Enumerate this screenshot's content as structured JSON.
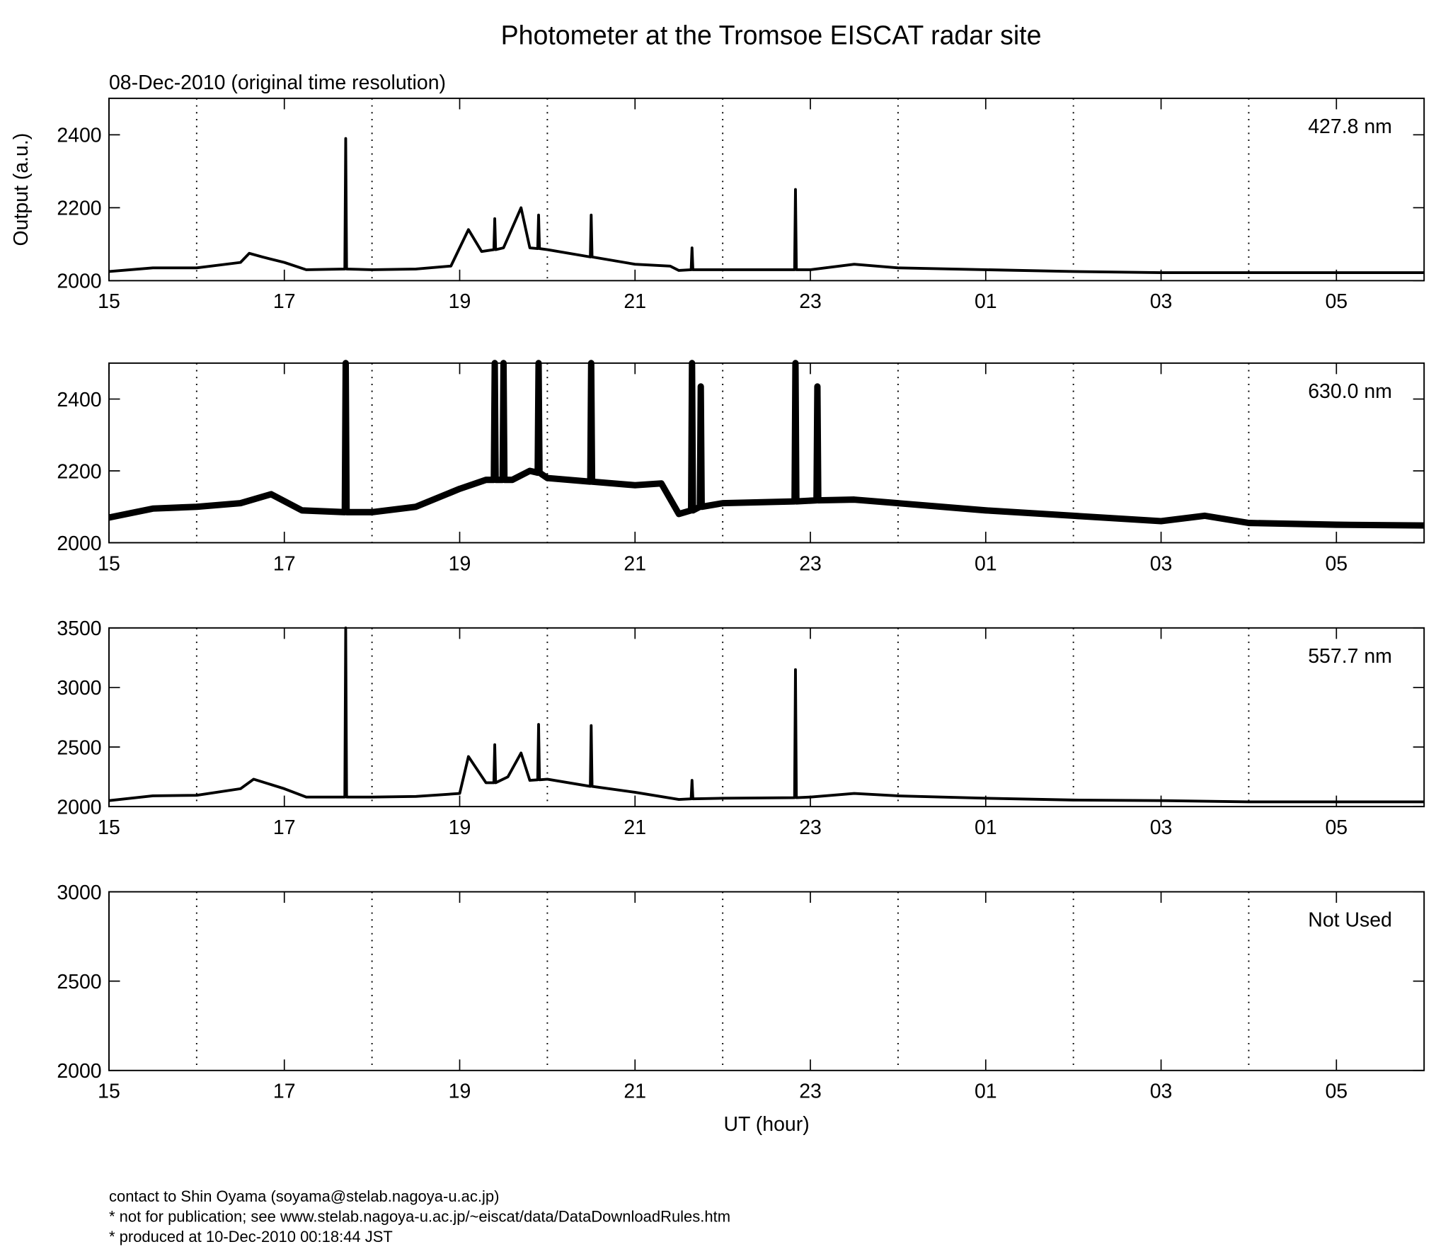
{
  "title": "Photometer at the Tromsoe EISCAT radar site",
  "subtitle": "08-Dec-2010 (original time resolution)",
  "footer": [
    "contact to Shin Oyama (soyama@stelab.nagoya-u.ac.jp)",
    "* not for publication; see www.stelab.nagoya-u.ac.jp/~eiscat/data/DataDownloadRules.htm",
    "* produced at 10-Dec-2010 00:18:44 JST"
  ],
  "chart_data": [
    {
      "type": "line",
      "label": "427.8 nm",
      "ylabel": "Output (a.u.)",
      "color": "#000000",
      "xlim": [
        15,
        30
      ],
      "xticks": [
        15,
        17,
        19,
        21,
        23,
        {
          "value": 25,
          "label": "01"
        },
        {
          "value": 27,
          "label": "03"
        },
        {
          "value": 29,
          "label": "05"
        }
      ],
      "xgrid": [
        16,
        18,
        20,
        22,
        24,
        26,
        28
      ],
      "ylim": [
        2000,
        2500
      ],
      "yticks": [
        2000,
        2200,
        2400
      ],
      "x": [
        15,
        15.5,
        16,
        16.5,
        16.6,
        16.75,
        17,
        17.25,
        17.69,
        17.7,
        17.71,
        18,
        18.5,
        18.9,
        19.1,
        19.25,
        19.39,
        19.4,
        19.41,
        19.5,
        19.7,
        19.8,
        19.89,
        19.9,
        19.91,
        20,
        20.49,
        20.5,
        20.51,
        21,
        21.4,
        21.5,
        21.64,
        21.65,
        21.66,
        22,
        22.82,
        22.83,
        22.84,
        23,
        23.5,
        24,
        25,
        26,
        27,
        28,
        29,
        30
      ],
      "values": [
        2025,
        2035,
        2035,
        2050,
        2075,
        2065,
        2050,
        2030,
        2032,
        2390,
        2032,
        2030,
        2032,
        2040,
        2140,
        2080,
        2085,
        2170,
        2085,
        2090,
        2200,
        2090,
        2088,
        2180,
        2088,
        2085,
        2065,
        2180,
        2065,
        2045,
        2040,
        2028,
        2030,
        2090,
        2030,
        2030,
        2030,
        2250,
        2030,
        2030,
        2045,
        2035,
        2030,
        2025,
        2022,
        2022,
        2022,
        2022
      ]
    },
    {
      "type": "line",
      "label": "630.0 nm",
      "color": "#000000",
      "xlim": [
        15,
        30
      ],
      "xticks": [
        15,
        17,
        19,
        21,
        23,
        {
          "value": 25,
          "label": "01"
        },
        {
          "value": 27,
          "label": "03"
        },
        {
          "value": 29,
          "label": "05"
        }
      ],
      "xgrid": [
        16,
        18,
        20,
        22,
        24,
        26,
        28
      ],
      "ylim": [
        2000,
        2500
      ],
      "yticks": [
        2000,
        2200,
        2400
      ],
      "x": [
        15,
        15.5,
        16,
        16.5,
        16.85,
        17.2,
        17.69,
        17.7,
        17.71,
        18,
        18.5,
        19,
        19.3,
        19.39,
        19.4,
        19.41,
        19.49,
        19.5,
        19.51,
        19.6,
        19.8,
        19.89,
        19.9,
        19.91,
        20,
        20.49,
        20.5,
        20.51,
        21,
        21.3,
        21.5,
        21.64,
        21.65,
        21.66,
        21.74,
        21.75,
        21.76,
        22,
        22.82,
        22.83,
        22.84,
        23.07,
        23.08,
        23.09,
        23.5,
        24,
        25,
        26,
        27,
        27.5,
        28,
        29,
        30
      ],
      "values": [
        2070,
        2095,
        2100,
        2110,
        2135,
        2090,
        2085,
        2500,
        2085,
        2085,
        2100,
        2150,
        2175,
        2175,
        2500,
        2175,
        2175,
        2500,
        2175,
        2175,
        2200,
        2195,
        2500,
        2195,
        2180,
        2170,
        2500,
        2170,
        2160,
        2165,
        2080,
        2090,
        2500,
        2090,
        2100,
        2435,
        2100,
        2110,
        2115,
        2500,
        2115,
        2118,
        2435,
        2118,
        2120,
        2110,
        2090,
        2075,
        2060,
        2075,
        2055,
        2050,
        2048
      ]
    },
    {
      "type": "line",
      "label": "557.7 nm",
      "color": "#000000",
      "xlim": [
        15,
        30
      ],
      "xticks": [
        15,
        17,
        19,
        21,
        23,
        {
          "value": 25,
          "label": "01"
        },
        {
          "value": 27,
          "label": "03"
        },
        {
          "value": 29,
          "label": "05"
        }
      ],
      "xgrid": [
        16,
        18,
        20,
        22,
        24,
        26,
        28
      ],
      "ylim": [
        2000,
        3500
      ],
      "yticks": [
        2000,
        2500,
        3000,
        3500
      ],
      "x": [
        15,
        15.5,
        16,
        16.5,
        16.65,
        17,
        17.25,
        17.69,
        17.7,
        17.71,
        18,
        18.5,
        19,
        19.1,
        19.3,
        19.39,
        19.4,
        19.41,
        19.55,
        19.7,
        19.8,
        19.89,
        19.9,
        19.91,
        20,
        20.49,
        20.5,
        20.51,
        21,
        21.5,
        21.64,
        21.65,
        21.66,
        22,
        22.82,
        22.83,
        22.84,
        23,
        23.5,
        24,
        25,
        26,
        27,
        28,
        29,
        30
      ],
      "values": [
        2050,
        2090,
        2095,
        2150,
        2230,
        2150,
        2080,
        2080,
        3500,
        2080,
        2080,
        2085,
        2110,
        2420,
        2200,
        2200,
        2520,
        2200,
        2250,
        2450,
        2220,
        2225,
        2690,
        2225,
        2230,
        2170,
        2680,
        2170,
        2120,
        2060,
        2065,
        2220,
        2065,
        2070,
        2075,
        3150,
        2075,
        2080,
        2110,
        2090,
        2070,
        2055,
        2050,
        2040,
        2040,
        2040
      ]
    },
    {
      "type": "line",
      "label": "Not Used",
      "xlabel": "UT (hour)",
      "xlim": [
        15,
        30
      ],
      "xticks": [
        15,
        17,
        19,
        21,
        23,
        {
          "value": 25,
          "label": "01"
        },
        {
          "value": 27,
          "label": "03"
        },
        {
          "value": 29,
          "label": "05"
        }
      ],
      "xgrid": [
        16,
        18,
        20,
        22,
        24,
        26,
        28
      ],
      "ylim": [
        2000,
        3000
      ],
      "yticks": [
        2000,
        2500,
        3000
      ]
    }
  ]
}
